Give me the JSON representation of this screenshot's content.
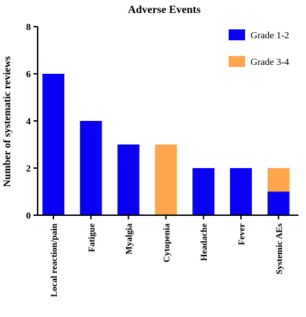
{
  "chart_data": {
    "type": "bar",
    "stacked": true,
    "title": "Adverse Events",
    "xlabel": "",
    "ylabel": "Number of systematic reviews",
    "ylim": [
      0,
      8
    ],
    "yticks": [
      0,
      2,
      4,
      6,
      8
    ],
    "categories": [
      "Local reaction/pain",
      "Fatigue",
      "Myalgia",
      "Cytopenia",
      "Headache",
      "Fever",
      "Systemic AEs"
    ],
    "series": [
      {
        "name": "Grade 1-2",
        "color": "#0a00f5",
        "values": [
          6,
          4,
          3,
          0,
          2,
          2,
          1
        ]
      },
      {
        "name": "Grade 3-4",
        "color": "#ffa54c",
        "values": [
          0,
          0,
          0,
          3,
          0,
          0,
          1
        ]
      }
    ],
    "legend": "top-right",
    "grid": false
  }
}
